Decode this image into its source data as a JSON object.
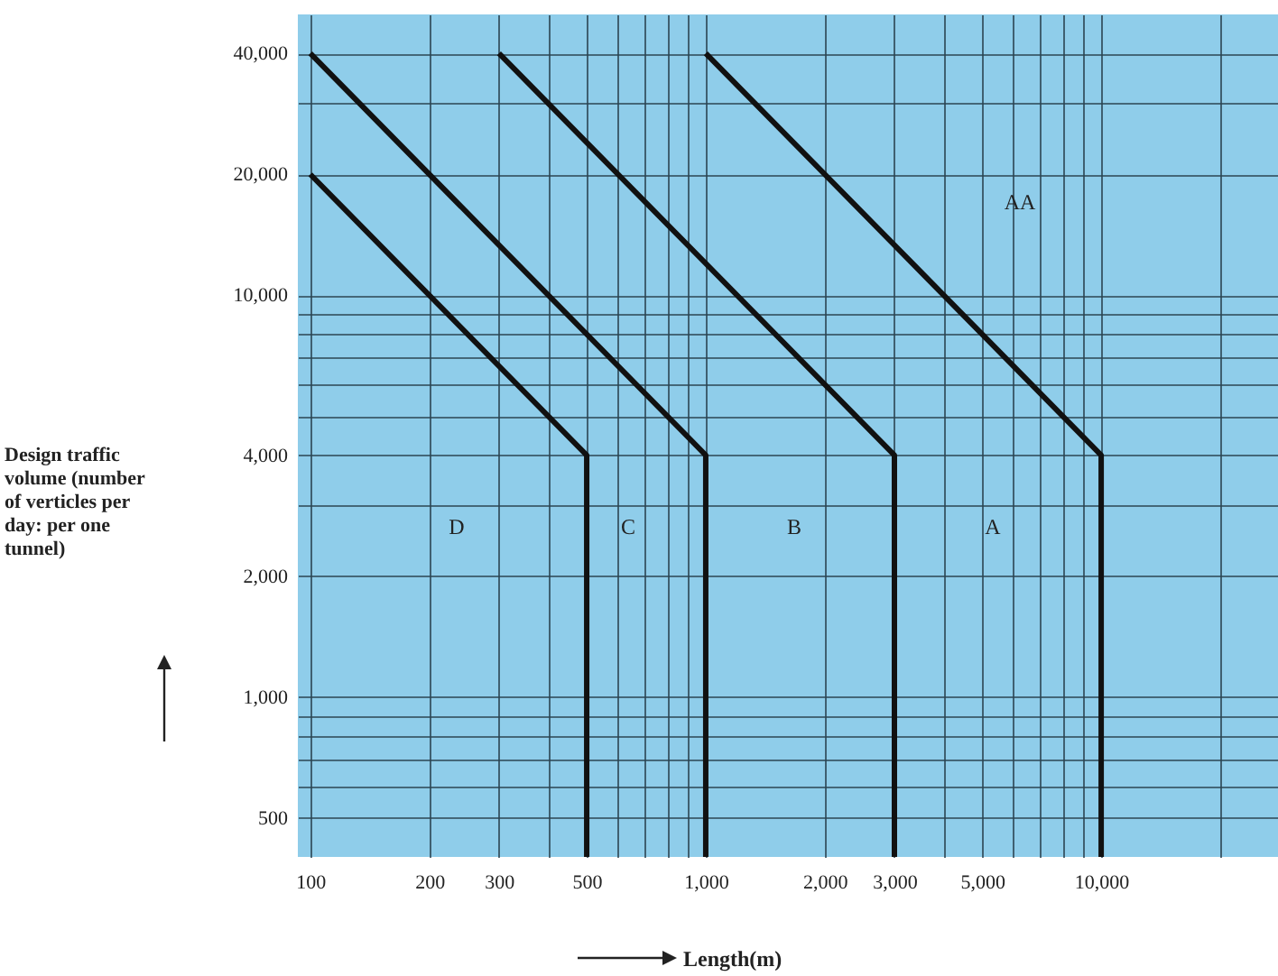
{
  "chart_data": {
    "type": "line",
    "xlabel": "Length(m)",
    "ylabel": "Design traffic volume (number of verticles per day: per one tunnel)",
    "log": "xy",
    "xlim": [
      93,
      28000
    ],
    "ylim": [
      400,
      50000
    ],
    "xticks": [
      100,
      200,
      300,
      {
        "value": 400,
        "label": null
      },
      500,
      {
        "value": 600,
        "label": null
      },
      {
        "value": 700,
        "label": null
      },
      {
        "value": 800,
        "label": null
      },
      {
        "value": 900,
        "label": null
      },
      {
        "value": 1000,
        "label": "1,000"
      },
      {
        "value": 2000,
        "label": "2,000"
      },
      {
        "value": 3000,
        "label": "3,000"
      },
      {
        "value": 4000,
        "label": null
      },
      {
        "value": 5000,
        "label": "5,000"
      },
      {
        "value": 6000,
        "label": null
      },
      {
        "value": 7000,
        "label": null
      },
      {
        "value": 8000,
        "label": null
      },
      {
        "value": 9000,
        "label": null
      },
      {
        "value": 10000,
        "label": "10,000"
      },
      {
        "value": 20000,
        "label": null
      }
    ],
    "yticks": [
      500,
      {
        "value": 600,
        "label": null
      },
      {
        "value": 700,
        "label": null
      },
      {
        "value": 800,
        "label": null
      },
      {
        "value": 900,
        "label": null
      },
      {
        "value": 1000,
        "label": "1,000"
      },
      {
        "value": 2000,
        "label": "2,000"
      },
      {
        "value": 3000,
        "label": null
      },
      {
        "value": 4000,
        "label": "4,000"
      },
      {
        "value": 5000,
        "label": null
      },
      {
        "value": 6000,
        "label": null
      },
      {
        "value": 7000,
        "label": null
      },
      {
        "value": 8000,
        "label": null
      },
      {
        "value": 9000,
        "label": null
      },
      {
        "value": 10000,
        "label": "10,000"
      },
      {
        "value": 20000,
        "label": "20,000"
      },
      {
        "value": 30000,
        "label": null
      },
      {
        "value": 40000,
        "label": "40,000"
      }
    ],
    "grid": true,
    "line_style": "solid",
    "series": [
      {
        "color": "#111111",
        "x": [
          100,
          500,
          500
        ],
        "values": [
          20000,
          4000,
          400
        ]
      },
      {
        "color": "#111111",
        "x": [
          100,
          1000,
          1000
        ],
        "values": [
          40000,
          4000,
          400
        ]
      },
      {
        "color": "#111111",
        "x": [
          300,
          3000,
          3000
        ],
        "values": [
          40000,
          4000,
          400
        ]
      },
      {
        "color": "#111111",
        "x": [
          1000,
          10000,
          10000
        ],
        "values": [
          40000,
          4000,
          400
        ]
      }
    ],
    "annotations": [
      "D",
      "C",
      "B",
      "A",
      "AA"
    ]
  }
}
